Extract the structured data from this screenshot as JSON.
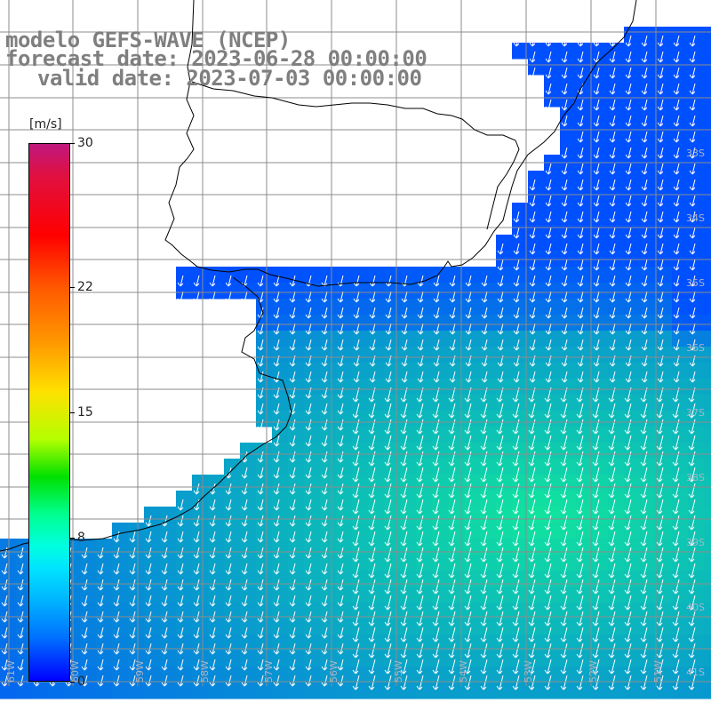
{
  "title": {
    "line1": "modelo GEFS-WAVE (NCEP)",
    "line2": "forecast date: 2023-06-28 00:00:00",
    "line3": "valid date: 2023-07-03 00:00:00"
  },
  "colorbar": {
    "unit": "[m/s]",
    "ticks": [
      {
        "label": "30",
        "value": 30
      },
      {
        "label": "22",
        "value": 22
      },
      {
        "label": "15",
        "value": 15
      },
      {
        "label": "8",
        "value": 8
      },
      {
        "label": "0",
        "value": 0
      }
    ],
    "min": 0,
    "max": 30
  },
  "lat_labels": [
    "33S",
    "34S",
    "35S",
    "36S",
    "37S",
    "38S",
    "39S",
    "40S",
    "41S"
  ],
  "lon_labels": [
    "61W",
    "60W",
    "59W",
    "58W",
    "57W",
    "56W",
    "55W",
    "54W",
    "53W",
    "52W",
    "51W"
  ],
  "colors": {
    "land": "#ffffff",
    "grid": "#8c8c8c",
    "arrow": "#ffffff",
    "coast": "#000000",
    "title_text": "#7f7f7f"
  },
  "field": {
    "quantity": "wind speed",
    "arrow_direction": "southward, slightly south-southwest"
  }
}
